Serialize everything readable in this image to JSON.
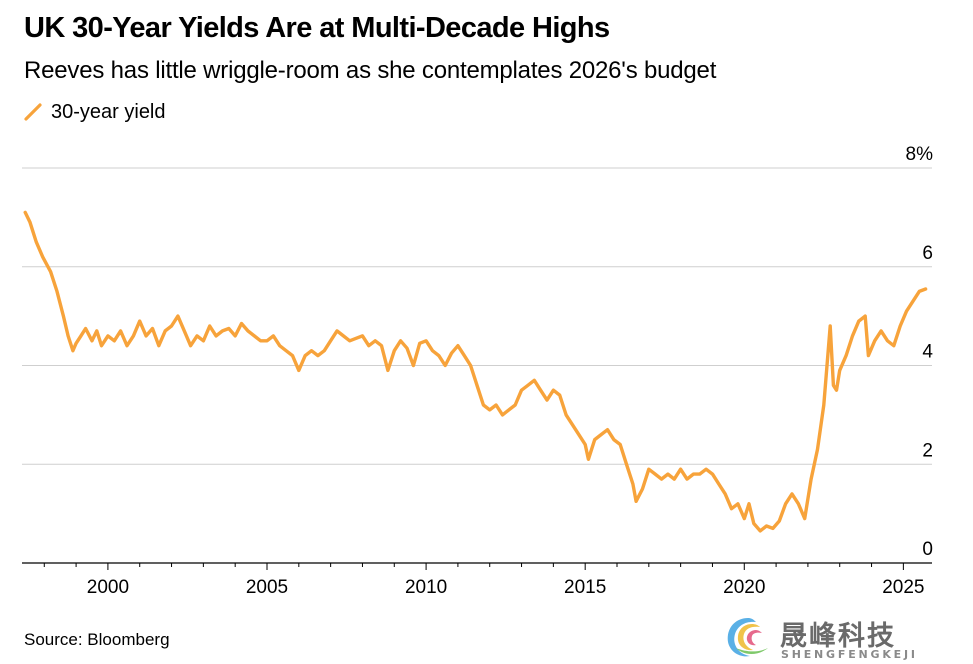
{
  "chart_data": {
    "type": "line",
    "title": "UK 30-Year Yields Are at Multi-Decade Highs",
    "subtitle": "Reeves has little wriggle-room as she contemplates 2026's budget",
    "source": "Source: Bloomberg",
    "y_unit": "%",
    "ylim": [
      0,
      8
    ],
    "yticks": [
      0,
      2,
      4,
      6,
      8
    ],
    "ytick_labels": [
      "0",
      "2",
      "4",
      "6",
      "8%"
    ],
    "xlim": [
      1997.3,
      2025.9
    ],
    "xticks": [
      2000,
      2005,
      2010,
      2015,
      2020,
      2025
    ],
    "xtick_labels": [
      "2000",
      "2005",
      "2010",
      "2015",
      "2020",
      "2025"
    ],
    "grid": true,
    "legend_position": "top-left",
    "color": "#f7a33b",
    "series": [
      {
        "name": "30-year yield",
        "x": [
          1997.4,
          1997.55,
          1997.75,
          1997.95,
          1998.2,
          1998.4,
          1998.6,
          1998.75,
          1998.9,
          1999.0,
          1999.15,
          1999.3,
          1999.5,
          1999.65,
          1999.8,
          2000.0,
          2000.2,
          2000.4,
          2000.6,
          2000.8,
          2001.0,
          2001.2,
          2001.4,
          2001.6,
          2001.8,
          2002.0,
          2002.2,
          2002.4,
          2002.6,
          2002.8,
          2003.0,
          2003.2,
          2003.4,
          2003.6,
          2003.8,
          2004.0,
          2004.2,
          2004.4,
          2004.6,
          2004.8,
          2005.0,
          2005.2,
          2005.4,
          2005.6,
          2005.8,
          2006.0,
          2006.2,
          2006.4,
          2006.6,
          2006.8,
          2007.0,
          2007.2,
          2007.4,
          2007.6,
          2007.8,
          2008.0,
          2008.2,
          2008.4,
          2008.6,
          2008.8,
          2009.0,
          2009.2,
          2009.4,
          2009.6,
          2009.8,
          2010.0,
          2010.2,
          2010.4,
          2010.6,
          2010.8,
          2011.0,
          2011.2,
          2011.4,
          2011.6,
          2011.8,
          2012.0,
          2012.2,
          2012.4,
          2012.6,
          2012.8,
          2013.0,
          2013.2,
          2013.4,
          2013.6,
          2013.8,
          2014.0,
          2014.2,
          2014.4,
          2014.6,
          2014.8,
          2015.0,
          2015.1,
          2015.3,
          2015.5,
          2015.7,
          2015.9,
          2016.1,
          2016.3,
          2016.5,
          2016.6,
          2016.8,
          2017.0,
          2017.2,
          2017.4,
          2017.6,
          2017.8,
          2018.0,
          2018.2,
          2018.4,
          2018.6,
          2018.8,
          2019.0,
          2019.2,
          2019.4,
          2019.6,
          2019.8,
          2020.0,
          2020.15,
          2020.3,
          2020.5,
          2020.7,
          2020.9,
          2021.1,
          2021.3,
          2021.5,
          2021.7,
          2021.9,
          2022.1,
          2022.3,
          2022.5,
          2022.7,
          2022.8,
          2022.9,
          2023.0,
          2023.2,
          2023.4,
          2023.6,
          2023.8,
          2023.9,
          2024.1,
          2024.3,
          2024.5,
          2024.7,
          2024.9,
          2025.1,
          2025.3,
          2025.5,
          2025.7
        ],
        "values": [
          7.1,
          6.9,
          6.5,
          6.2,
          5.9,
          5.5,
          5.0,
          4.6,
          4.3,
          4.45,
          4.6,
          4.75,
          4.5,
          4.7,
          4.4,
          4.6,
          4.5,
          4.7,
          4.4,
          4.6,
          4.9,
          4.6,
          4.75,
          4.4,
          4.7,
          4.8,
          5.0,
          4.7,
          4.4,
          4.6,
          4.5,
          4.8,
          4.6,
          4.7,
          4.75,
          4.6,
          4.85,
          4.7,
          4.6,
          4.5,
          4.5,
          4.6,
          4.4,
          4.3,
          4.2,
          3.9,
          4.2,
          4.3,
          4.2,
          4.3,
          4.5,
          4.7,
          4.6,
          4.5,
          4.55,
          4.6,
          4.4,
          4.5,
          4.4,
          3.9,
          4.3,
          4.5,
          4.35,
          4.0,
          4.45,
          4.5,
          4.3,
          4.2,
          4.0,
          4.25,
          4.4,
          4.2,
          4.0,
          3.6,
          3.2,
          3.1,
          3.2,
          3.0,
          3.1,
          3.2,
          3.5,
          3.6,
          3.7,
          3.5,
          3.3,
          3.5,
          3.4,
          3.0,
          2.8,
          2.6,
          2.4,
          2.1,
          2.5,
          2.6,
          2.7,
          2.5,
          2.4,
          2.0,
          1.6,
          1.25,
          1.5,
          1.9,
          1.8,
          1.7,
          1.8,
          1.7,
          1.9,
          1.7,
          1.8,
          1.8,
          1.9,
          1.8,
          1.6,
          1.4,
          1.1,
          1.2,
          0.9,
          1.2,
          0.8,
          0.65,
          0.75,
          0.7,
          0.85,
          1.2,
          1.4,
          1.2,
          0.9,
          1.7,
          2.3,
          3.2,
          4.8,
          3.6,
          3.5,
          3.9,
          4.2,
          4.6,
          4.9,
          5.0,
          4.2,
          4.5,
          4.7,
          4.5,
          4.4,
          4.8,
          5.1,
          5.3,
          5.5,
          5.55
        ]
      }
    ]
  }
}
